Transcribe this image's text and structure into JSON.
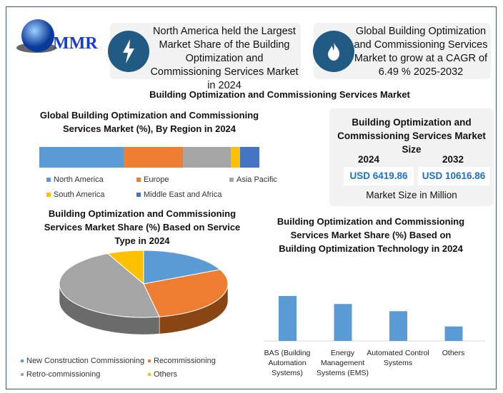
{
  "logo": {
    "text": "MMR"
  },
  "callouts": [
    {
      "icon": "lightning-icon",
      "text": "North America held the Largest Market Share of the Building Optimization and Commissioning Services Market in 2024"
    },
    {
      "icon": "flame-icon",
      "text": "Global Building Optimization and Commissioning Services Market to grow at a CAGR of 6.49 % 2025-2032"
    }
  ],
  "main_title": "Building Optimization and Commissioning Services Market",
  "size_box": {
    "title": "Building Optimization and Commissioning Services Market Size",
    "years": [
      "2024",
      "2032"
    ],
    "values": [
      "USD 6419.86",
      "USD 10616.86"
    ],
    "footer": "Market Size in Million"
  },
  "colors": {
    "blue": "#5b9bd5",
    "orange": "#ed7d31",
    "gray": "#a5a5a5",
    "yellow": "#ffc000",
    "darkblue": "#4472c4",
    "accent": "#215a82",
    "value_text": "#1f6fc5"
  },
  "chart_data": [
    {
      "type": "bar",
      "orientation": "horizontal-stacked",
      "title": "Global Building Optimization and Commissioning Services Market (%), By Region in 2024",
      "series": [
        {
          "name": "North America",
          "value": 38.3,
          "color": "#5b9bd5"
        },
        {
          "name": "Europe",
          "value": 26.9,
          "color": "#ed7d31"
        },
        {
          "name": "Asia Pacific",
          "value": 21.8,
          "color": "#a5a5a5"
        },
        {
          "name": "South America",
          "value": 4.2,
          "color": "#ffc000"
        },
        {
          "name": "Middle East and Africa",
          "value": 8.8,
          "color": "#4472c4"
        }
      ],
      "legend": "bottom"
    },
    {
      "type": "pie",
      "style": "3d",
      "title": "Building Optimization and Commissioning Services Market Share (%) Based on Service Type in 2024",
      "slices": [
        {
          "name": "New Construction Commissioning",
          "value": 18,
          "color": "#5b9bd5"
        },
        {
          "name": "Recommissioning",
          "value": 29,
          "color": "#ed7d31"
        },
        {
          "name": "Retro-commissioning",
          "value": 46,
          "color": "#a5a5a5"
        },
        {
          "name": "Others",
          "value": 7,
          "color": "#ffc000"
        }
      ],
      "legend": "bottom"
    },
    {
      "type": "bar",
      "title": "Building Optimization and Commissioning Services Market Share (%) Based on Building Optimization Technology in 2024",
      "categories": [
        "BAS (Building Automation Systems)",
        "Energy Management Systems (EMS)",
        "Automated Control Systems",
        "Others"
      ],
      "values": [
        62,
        51,
        41,
        20
      ],
      "color": "#5b9bd5",
      "grid": false
    }
  ]
}
